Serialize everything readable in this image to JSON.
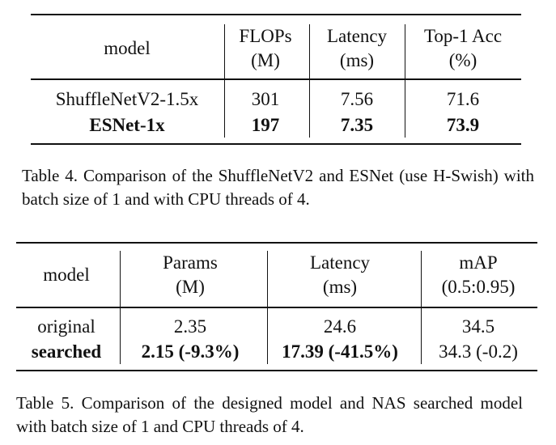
{
  "table4": {
    "header": [
      [
        "model"
      ],
      [
        "FLOPs",
        "(M)"
      ],
      [
        "Latency",
        "(ms)"
      ],
      [
        "Top-1 Acc",
        "(%)"
      ]
    ],
    "rows": [
      [
        "ShuffleNetV2-1.5x",
        "301",
        "7.56",
        "71.6"
      ],
      [
        "ESNet-1x",
        "197",
        "7.35",
        "73.9"
      ]
    ],
    "caption": "Table 4. Comparison of the ShuffleNetV2 and ESNet (use H-Swish) with batch size of 1 and with CPU threads of 4."
  },
  "table5": {
    "header": [
      [
        "model"
      ],
      [
        "Params",
        "(M)"
      ],
      [
        "Latency",
        "(ms)"
      ],
      [
        "mAP",
        "(0.5:0.95)"
      ]
    ],
    "rows": [
      [
        "original",
        "2.35",
        "24.6",
        "34.5"
      ],
      [
        "searched",
        "2.15 (-9.3%)",
        "17.39 (-41.5%)",
        "34.3 (-0.2)"
      ]
    ],
    "caption": "Table 5. Comparison of the designed model and NAS searched model with batch size of 1 and CPU threads of 4."
  }
}
